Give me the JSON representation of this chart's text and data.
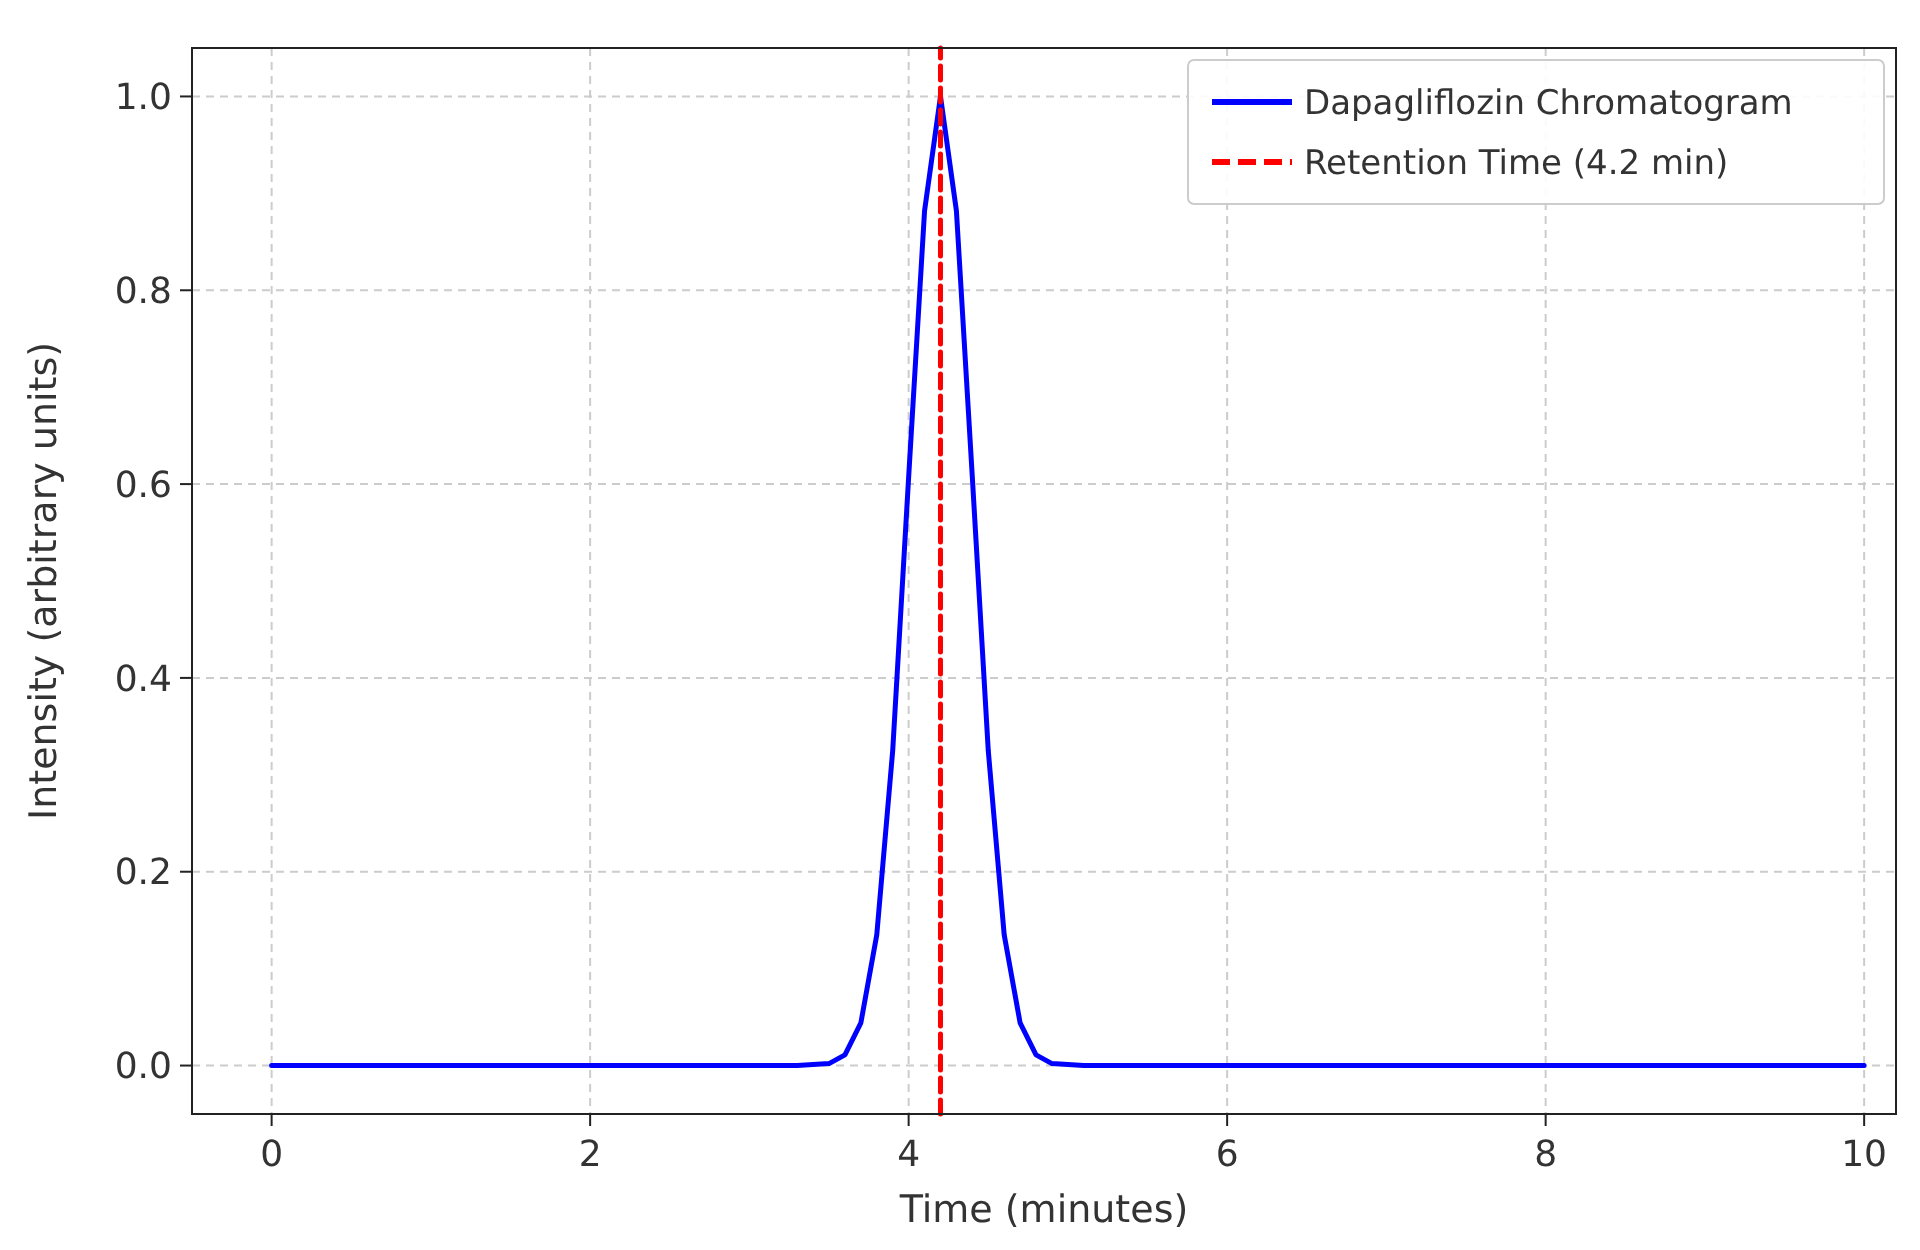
{
  "chart_data": {
    "type": "line",
    "xlabel": "Time (minutes)",
    "ylabel": "Intensity (arbitrary units)",
    "x": [
      0,
      3.3,
      3.5,
      3.6,
      3.7,
      3.8,
      3.9,
      4.0,
      4.1,
      4.2,
      4.3,
      4.4,
      4.5,
      4.6,
      4.7,
      4.8,
      4.9,
      5.1,
      10
    ],
    "series": [
      {
        "name": "Dapagliflozin Chromatogram",
        "color": "#0000ff",
        "values": [
          0,
          0,
          0.002,
          0.011,
          0.044,
          0.135,
          0.325,
          0.607,
          0.882,
          1,
          0.882,
          0.607,
          0.325,
          0.135,
          0.044,
          0.011,
          0.002,
          0,
          0
        ]
      },
      {
        "name": "Retention Time (4.2 min)",
        "color": "#ff0000",
        "x": [
          4.2,
          4.2
        ],
        "values": [
          -0.05,
          1.05
        ],
        "line_style": "dashed"
      }
    ],
    "xlim": [
      -0.5,
      10.2
    ],
    "ylim": [
      -0.05,
      1.05
    ],
    "xticks": [
      0,
      2,
      4,
      6,
      8,
      10
    ],
    "yticks": [
      {
        "value": 0,
        "label": "0.0"
      },
      {
        "value": 0.2,
        "label": "0.2"
      },
      {
        "value": 0.4,
        "label": "0.4"
      },
      {
        "value": 0.6,
        "label": "0.6"
      },
      {
        "value": 0.8,
        "label": "0.8"
      },
      {
        "value": 1,
        "label": "1.0"
      }
    ],
    "grid": true,
    "legend": "top right",
    "line_style": "solid",
    "marker": "none"
  }
}
